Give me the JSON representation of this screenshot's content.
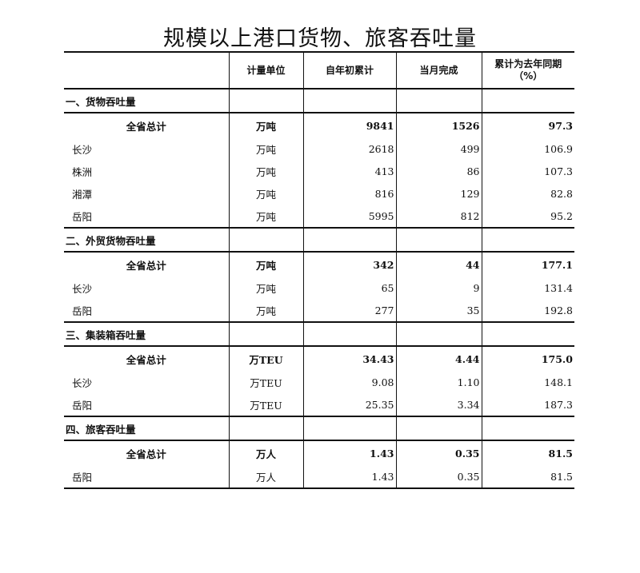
{
  "title": "规模以上港口货物、旅客吞吐量",
  "headers": [
    "",
    "计量单位",
    "自年初累计",
    "当月完成",
    "累计为去年同期（%）"
  ],
  "sections": [
    {
      "label": "一、货物吞吐量",
      "rows": [
        {
          "name": "全省总计",
          "unit": "万吨",
          "ytd": "9841",
          "month": "1526",
          "pct": "97.3",
          "total": true
        },
        {
          "name": "长沙",
          "unit": "万吨",
          "ytd": "2618",
          "month": "499",
          "pct": "106.9"
        },
        {
          "name": "株洲",
          "unit": "万吨",
          "ytd": "413",
          "month": "86",
          "pct": "107.3"
        },
        {
          "name": "湘潭",
          "unit": "万吨",
          "ytd": "816",
          "month": "129",
          "pct": "82.8"
        },
        {
          "name": "岳阳",
          "unit": "万吨",
          "ytd": "5995",
          "month": "812",
          "pct": "95.2"
        }
      ]
    },
    {
      "label": "二、外贸货物吞吐量",
      "rows": [
        {
          "name": "全省总计",
          "unit": "万吨",
          "ytd": "342",
          "month": "44",
          "pct": "177.1",
          "total": true
        },
        {
          "name": "长沙",
          "unit": "万吨",
          "ytd": "65",
          "month": "9",
          "pct": "131.4"
        },
        {
          "name": "岳阳",
          "unit": "万吨",
          "ytd": "277",
          "month": "35",
          "pct": "192.8"
        }
      ]
    },
    {
      "label": "三、集装箱吞吐量",
      "rows": [
        {
          "name": "全省总计",
          "unit": "万TEU",
          "ytd": "34.43",
          "month": "4.44",
          "pct": "175.0",
          "total": true
        },
        {
          "name": "长沙",
          "unit": "万TEU",
          "ytd": "9.08",
          "month": "1.10",
          "pct": "148.1"
        },
        {
          "name": "岳阳",
          "unit": "万TEU",
          "ytd": "25.35",
          "month": "3.34",
          "pct": "187.3"
        }
      ]
    },
    {
      "label": "四、旅客吞吐量",
      "rows": [
        {
          "name": "全省总计",
          "unit": "万人",
          "ytd": "1.43",
          "month": "0.35",
          "pct": "81.5",
          "total": true
        },
        {
          "name": "岳阳",
          "unit": "万人",
          "ytd": "1.43",
          "month": "0.35",
          "pct": "81.5"
        }
      ]
    }
  ]
}
